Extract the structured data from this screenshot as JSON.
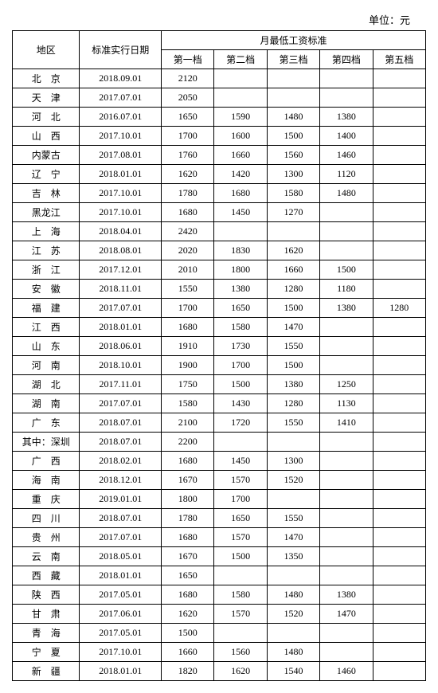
{
  "unit_label": "单位：元",
  "header": {
    "region": "地区",
    "date": "标准实行日期",
    "wage_title": "月最低工资标准",
    "tiers": [
      "第一档",
      "第二档",
      "第三档",
      "第四档",
      "第五档"
    ]
  },
  "rows": [
    {
      "region": "北　京",
      "date": "2018.09.01",
      "t": [
        "2120",
        "",
        "",
        "",
        ""
      ]
    },
    {
      "region": "天　津",
      "date": "2017.07.01",
      "t": [
        "2050",
        "",
        "",
        "",
        ""
      ]
    },
    {
      "region": "河　北",
      "date": "2016.07.01",
      "t": [
        "1650",
        "1590",
        "1480",
        "1380",
        ""
      ]
    },
    {
      "region": "山　西",
      "date": "2017.10.01",
      "t": [
        "1700",
        "1600",
        "1500",
        "1400",
        ""
      ]
    },
    {
      "region": "内蒙古",
      "date": "2017.08.01",
      "t": [
        "1760",
        "1660",
        "1560",
        "1460",
        ""
      ]
    },
    {
      "region": "辽　宁",
      "date": "2018.01.01",
      "t": [
        "1620",
        "1420",
        "1300",
        "1120",
        ""
      ]
    },
    {
      "region": "吉　林",
      "date": "2017.10.01",
      "t": [
        "1780",
        "1680",
        "1580",
        "1480",
        ""
      ]
    },
    {
      "region": "黑龙江",
      "date": "2017.10.01",
      "t": [
        "1680",
        "1450",
        "1270",
        "",
        ""
      ]
    },
    {
      "region": "上　海",
      "date": "2018.04.01",
      "t": [
        "2420",
        "",
        "",
        "",
        ""
      ]
    },
    {
      "region": "江　苏",
      "date": "2018.08.01",
      "t": [
        "2020",
        "1830",
        "1620",
        "",
        ""
      ]
    },
    {
      "region": "浙　江",
      "date": "2017.12.01",
      "t": [
        "2010",
        "1800",
        "1660",
        "1500",
        ""
      ]
    },
    {
      "region": "安　徽",
      "date": "2018.11.01",
      "t": [
        "1550",
        "1380",
        "1280",
        "1180",
        ""
      ]
    },
    {
      "region": "福　建",
      "date": "2017.07.01",
      "t": [
        "1700",
        "1650",
        "1500",
        "1380",
        "1280"
      ]
    },
    {
      "region": "江　西",
      "date": "2018.01.01",
      "t": [
        "1680",
        "1580",
        "1470",
        "",
        ""
      ]
    },
    {
      "region": "山　东",
      "date": "2018.06.01",
      "t": [
        "1910",
        "1730",
        "1550",
        "",
        ""
      ]
    },
    {
      "region": "河　南",
      "date": "2018.10.01",
      "t": [
        "1900",
        "1700",
        "1500",
        "",
        ""
      ]
    },
    {
      "region": "湖　北",
      "date": "2017.11.01",
      "t": [
        "1750",
        "1500",
        "1380",
        "1250",
        ""
      ]
    },
    {
      "region": "湖　南",
      "date": "2017.07.01",
      "t": [
        "1580",
        "1430",
        "1280",
        "1130",
        ""
      ]
    },
    {
      "region": "广　东",
      "date": "2018.07.01",
      "t": [
        "2100",
        "1720",
        "1550",
        "1410",
        ""
      ]
    },
    {
      "region": "其中：深圳",
      "date": "2018.07.01",
      "t": [
        "2200",
        "",
        "",
        "",
        ""
      ]
    },
    {
      "region": "广　西",
      "date": "2018.02.01",
      "t": [
        "1680",
        "1450",
        "1300",
        "",
        ""
      ]
    },
    {
      "region": "海　南",
      "date": "2018.12.01",
      "t": [
        "1670",
        "1570",
        "1520",
        "",
        ""
      ]
    },
    {
      "region": "重　庆",
      "date": "2019.01.01",
      "t": [
        "1800",
        "1700",
        "",
        "",
        ""
      ]
    },
    {
      "region": "四　川",
      "date": "2018.07.01",
      "t": [
        "1780",
        "1650",
        "1550",
        "",
        ""
      ]
    },
    {
      "region": "贵　州",
      "date": "2017.07.01",
      "t": [
        "1680",
        "1570",
        "1470",
        "",
        ""
      ]
    },
    {
      "region": "云　南",
      "date": "2018.05.01",
      "t": [
        "1670",
        "1500",
        "1350",
        "",
        ""
      ]
    },
    {
      "region": "西　藏",
      "date": "2018.01.01",
      "t": [
        "1650",
        "",
        "",
        "",
        ""
      ]
    },
    {
      "region": "陕　西",
      "date": "2017.05.01",
      "t": [
        "1680",
        "1580",
        "1480",
        "1380",
        ""
      ]
    },
    {
      "region": "甘　肃",
      "date": "2017.06.01",
      "t": [
        "1620",
        "1570",
        "1520",
        "1470",
        ""
      ]
    },
    {
      "region": "青　海",
      "date": "2017.05.01",
      "t": [
        "1500",
        "",
        "",
        "",
        ""
      ]
    },
    {
      "region": "宁　夏",
      "date": "2017.10.01",
      "t": [
        "1660",
        "1560",
        "1480",
        "",
        ""
      ]
    },
    {
      "region": "新　疆",
      "date": "2018.01.01",
      "t": [
        "1820",
        "1620",
        "1540",
        "1460",
        ""
      ]
    }
  ]
}
